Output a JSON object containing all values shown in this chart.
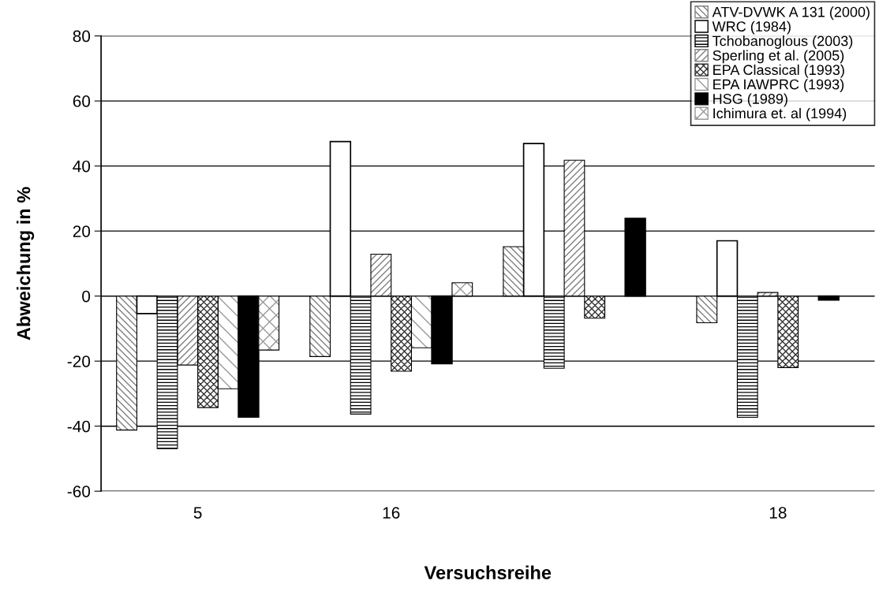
{
  "chart_data": {
    "type": "bar",
    "xlabel": "Versuchsreihe",
    "ylabel": "Abweichung in %",
    "categories": [
      "5",
      "16",
      null,
      "18"
    ],
    "series": [
      {
        "name": "ATV-DVWK A 131 (2000)",
        "color": "#808080",
        "values": [
          -41.2,
          -18.6,
          15.2,
          -8.2
        ]
      },
      {
        "name": "WRC (1984)",
        "color": "#ffffff",
        "values": [
          -5.4,
          47.5,
          46.9,
          17.0
        ]
      },
      {
        "name": "Tchobanoglous (2003)",
        "color": "#000000",
        "values": [
          -46.9,
          -36.3,
          -22.2,
          -37.3
        ]
      },
      {
        "name": "Sperling et al. (2005)",
        "color": "#808080",
        "values": [
          -21.2,
          12.9,
          41.8,
          1.1
        ]
      },
      {
        "name": "EPA Classical (1993)",
        "color": "#333333",
        "values": [
          -34.3,
          -23.1,
          -6.8,
          -22.0
        ]
      },
      {
        "name": "EPA IAWPRC (1993)",
        "color": "#999999",
        "values": [
          -28.5,
          -15.9,
          null,
          null
        ]
      },
      {
        "name": "HSG (1989)",
        "color": "#000000",
        "values": [
          -37.2,
          -20.8,
          23.9,
          -1.2
        ]
      },
      {
        "name": "Ichimura et. al (1994)",
        "color": "#999999",
        "values": [
          -16.6,
          4.1,
          null,
          null
        ]
      }
    ],
    "ylim": [
      -60,
      80
    ],
    "yticks": [
      -60,
      -40,
      -20,
      0,
      20,
      40,
      60,
      80
    ],
    "grid": "y",
    "legend": "top right"
  }
}
